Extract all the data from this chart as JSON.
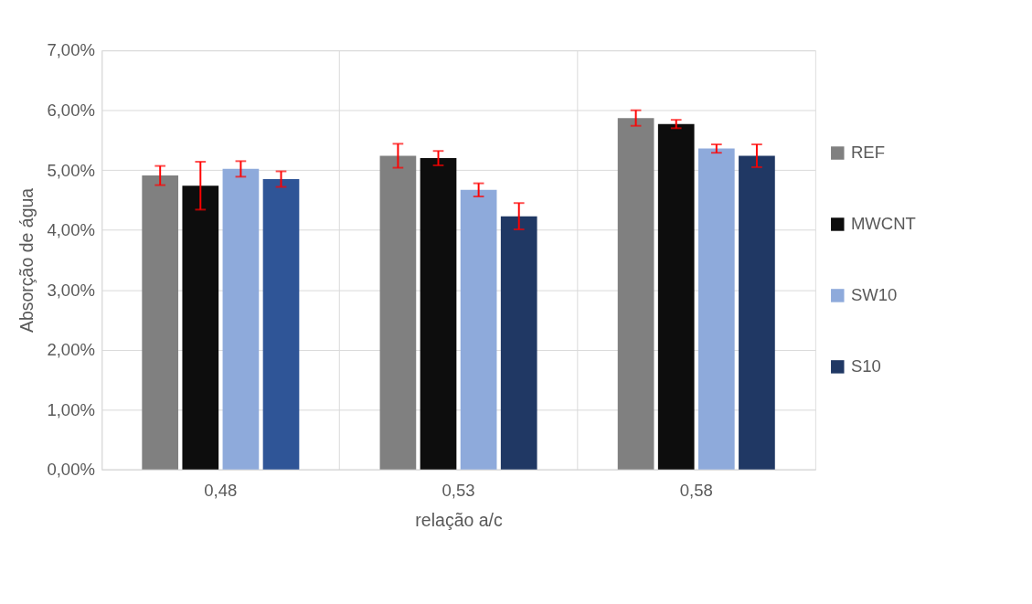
{
  "chart_data": {
    "type": "bar",
    "xlabel": "relação a/c",
    "ylabel": "Absorção de água",
    "categories": [
      "0,48",
      "0,53",
      "0,58"
    ],
    "series": [
      {
        "name": "REF",
        "color": "#808080",
        "values": [
          4.91,
          5.24,
          5.87
        ],
        "errors": [
          0.16,
          0.2,
          0.13
        ]
      },
      {
        "name": "MWCNT",
        "color": "#0d0d0d",
        "values": [
          4.74,
          5.2,
          5.77
        ],
        "errors": [
          0.4,
          0.12,
          0.07
        ]
      },
      {
        "name": "SW10",
        "color": "#8eaadb",
        "values": [
          5.02,
          4.67,
          5.36
        ],
        "errors": [
          0.13,
          0.11,
          0.07
        ]
      },
      {
        "name": "S10",
        "color": "#203864",
        "colors": [
          "#2f5597",
          "#203864",
          "#203864"
        ],
        "values": [
          4.85,
          4.23,
          5.24
        ],
        "errors": [
          0.13,
          0.22,
          0.19
        ]
      }
    ],
    "ylim": [
      0,
      7
    ],
    "yticks": [
      {
        "value": 0,
        "label": "0,00%"
      },
      {
        "value": 1,
        "label": "1,00%"
      },
      {
        "value": 2,
        "label": "2,00%"
      },
      {
        "value": 3,
        "label": "3,00%"
      },
      {
        "value": 4,
        "label": "4,00%"
      },
      {
        "value": 5,
        "label": "5,00%"
      },
      {
        "value": 6,
        "label": "6,00%"
      },
      {
        "value": 7,
        "label": "7,00%"
      }
    ],
    "grid": true,
    "legend": "right"
  }
}
